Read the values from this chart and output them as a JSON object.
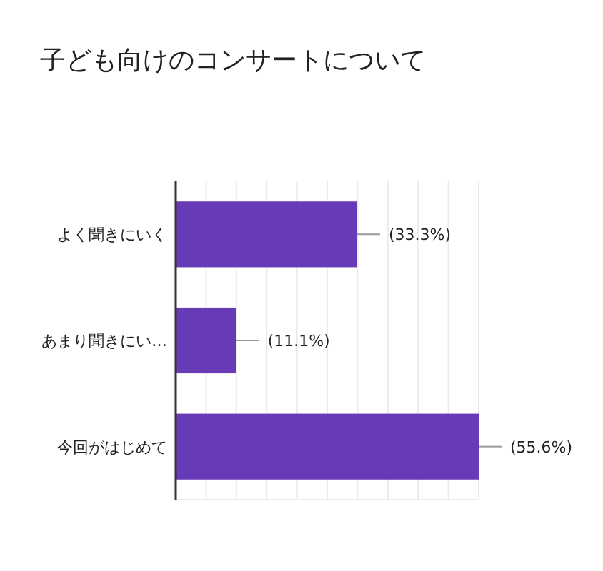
{
  "chart_data": {
    "type": "bar",
    "orientation": "horizontal",
    "title": "子ども向けのコンサートについて",
    "categories": [
      "よく聞きにいく",
      "あまり聞きにい…",
      "今回がはじめて"
    ],
    "values": [
      33.3,
      11.1,
      55.6
    ],
    "value_labels": [
      "(33.3%)",
      "(11.1%)",
      "(55.6%)"
    ],
    "color": "#673ab7",
    "grid": "x"
  }
}
